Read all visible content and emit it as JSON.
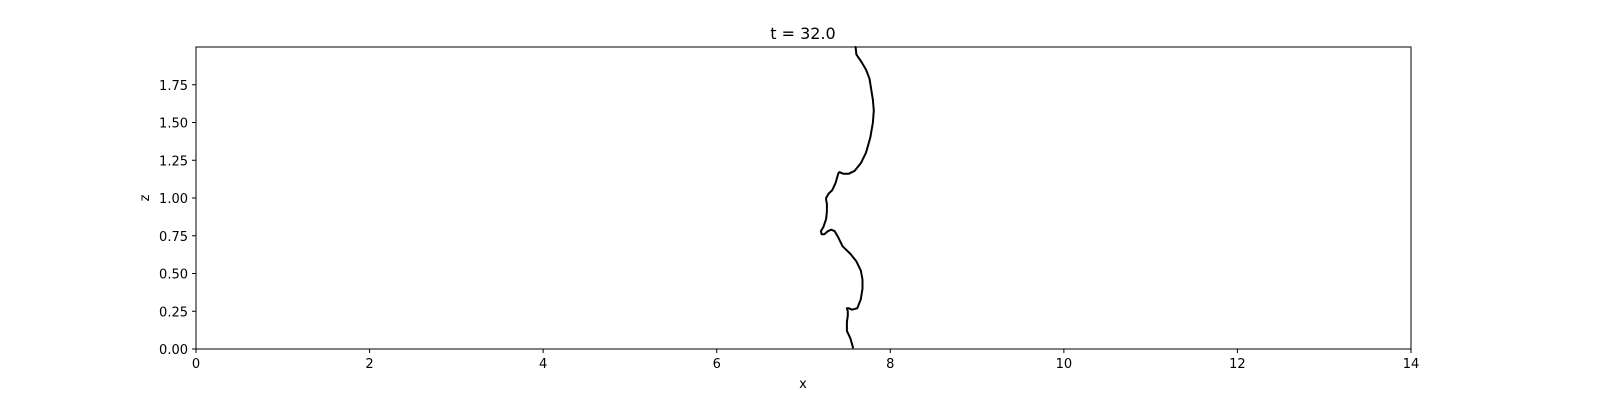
{
  "chart_data": {
    "type": "line",
    "title": "t = 32.0",
    "xlabel": "x",
    "ylabel": "z",
    "xlim": [
      0,
      14
    ],
    "ylim": [
      0,
      2.0
    ],
    "xticks": [
      0,
      2,
      4,
      6,
      8,
      10,
      12,
      14
    ],
    "xtick_labels": [
      "0",
      "2",
      "4",
      "6",
      "8",
      "10",
      "12",
      "14"
    ],
    "yticks": [
      0.0,
      0.25,
      0.5,
      0.75,
      1.0,
      1.25,
      1.5,
      1.75
    ],
    "ytick_labels": [
      "0.00",
      "0.25",
      "0.50",
      "0.75",
      "1.00",
      "1.25",
      "1.50",
      "1.75"
    ],
    "grid": false,
    "line_color": "#000000",
    "series": [
      {
        "x": [
          7.57,
          7.54,
          7.5,
          7.5,
          7.51,
          7.51,
          7.5,
          7.52,
          7.56,
          7.62,
          7.66,
          7.68,
          7.68,
          7.66,
          7.61,
          7.54,
          7.45,
          7.4,
          7.36,
          7.32,
          7.28,
          7.24,
          7.21,
          7.2,
          7.23,
          7.26,
          7.27,
          7.27,
          7.26,
          7.26,
          7.29,
          7.33,
          7.37,
          7.4,
          7.41,
          7.42,
          7.46,
          7.52,
          7.59,
          7.66,
          7.72,
          7.77,
          7.8,
          7.81,
          7.8,
          7.78,
          7.76,
          7.72,
          7.67,
          7.61,
          7.6
        ],
        "y": [
          0.01,
          0.07,
          0.12,
          0.18,
          0.22,
          0.25,
          0.27,
          0.27,
          0.26,
          0.27,
          0.33,
          0.4,
          0.46,
          0.52,
          0.58,
          0.63,
          0.68,
          0.74,
          0.78,
          0.79,
          0.78,
          0.76,
          0.76,
          0.78,
          0.81,
          0.86,
          0.91,
          0.96,
          0.99,
          1.0,
          1.03,
          1.05,
          1.1,
          1.16,
          1.17,
          1.17,
          1.16,
          1.16,
          1.18,
          1.23,
          1.3,
          1.4,
          1.5,
          1.58,
          1.65,
          1.72,
          1.79,
          1.85,
          1.9,
          1.95,
          2.0
        ]
      }
    ]
  }
}
